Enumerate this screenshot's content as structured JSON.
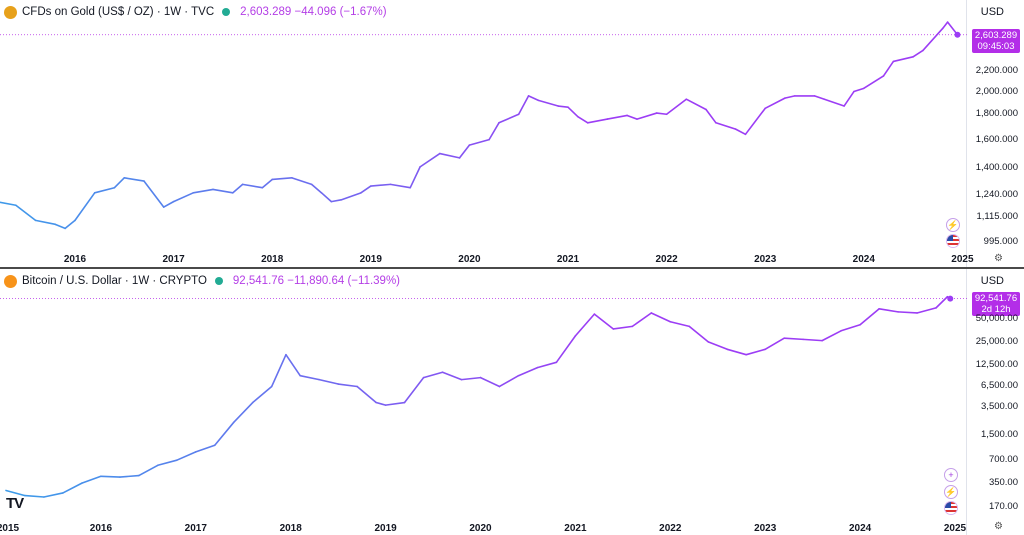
{
  "colors": {
    "line_start": "#3d9be9",
    "line_end": "#9c3df5",
    "accent": "#b32ee8",
    "status": "#22ab94",
    "legend_values": "#b43ee6"
  },
  "gold": {
    "title": "CFDs on Gold (US$ / OZ) · 1W · TVC",
    "values": "2,603.289  −44.096 (−1.67%)",
    "currency": "USD",
    "price_tag": {
      "price": "2,603.289",
      "time": "09:45:03"
    },
    "icons": [
      "gold-coin-icon",
      "lightning-icon",
      "us-flag-icon",
      "gear-icon"
    ]
  },
  "btc": {
    "title": "Bitcoin / U.S. Dollar · 1W · CRYPTO",
    "values": "92,541.76  −11,890.64 (−11.39%)",
    "currency": "USD",
    "price_tag": {
      "price": "92,541.76",
      "time": "2d 12h"
    },
    "icons": [
      "bitcoin-icon",
      "plus-icon",
      "lightning-icon",
      "us-flag-icon",
      "gear-icon",
      "tradingview-logo"
    ]
  },
  "chart_data": [
    {
      "type": "line",
      "title": "CFDs on Gold (US$ / OZ) · 1W · TVC",
      "y_scale": "log",
      "y_ticks": [
        "2,200.000",
        "2,000.000",
        "1,800.000",
        "1,600.000",
        "1,400.000",
        "1,240.000",
        "1,115.000",
        "995.000"
      ],
      "x_ticks": [
        "2016",
        "2017",
        "2018",
        "2019",
        "2020",
        "2021",
        "2022",
        "2023",
        "2024",
        "2025"
      ],
      "x": [
        2015.0,
        2015.2,
        2015.4,
        2015.6,
        2015.8,
        2015.9,
        2016.0,
        2016.2,
        2016.4,
        2016.5,
        2016.7,
        2016.9,
        2017.0,
        2017.2,
        2017.4,
        2017.6,
        2017.7,
        2017.9,
        2018.0,
        2018.2,
        2018.4,
        2018.5,
        2018.6,
        2018.7,
        2018.9,
        2019.0,
        2019.2,
        2019.4,
        2019.5,
        2019.7,
        2019.9,
        2020.0,
        2020.2,
        2020.3,
        2020.5,
        2020.6,
        2020.7,
        2020.9,
        2021.0,
        2021.1,
        2021.2,
        2021.4,
        2021.6,
        2021.7,
        2021.9,
        2022.0,
        2022.2,
        2022.4,
        2022.5,
        2022.7,
        2022.8,
        2023.0,
        2023.2,
        2023.3,
        2023.5,
        2023.6,
        2023.8,
        2023.9,
        2024.0,
        2024.2,
        2024.3,
        2024.5,
        2024.6,
        2024.8,
        2024.85,
        2024.95
      ],
      "y": [
        1240,
        1200,
        1180,
        1100,
        1080,
        1060,
        1100,
        1250,
        1280,
        1340,
        1320,
        1170,
        1200,
        1250,
        1270,
        1250,
        1300,
        1280,
        1330,
        1340,
        1300,
        1250,
        1200,
        1210,
        1250,
        1290,
        1300,
        1280,
        1410,
        1500,
        1470,
        1560,
        1600,
        1730,
        1800,
        1960,
        1920,
        1870,
        1860,
        1780,
        1730,
        1760,
        1790,
        1760,
        1810,
        1800,
        1930,
        1840,
        1730,
        1680,
        1640,
        1850,
        1940,
        1960,
        1960,
        1930,
        1870,
        2000,
        2030,
        2150,
        2300,
        2350,
        2420,
        2680,
        2760,
        2603
      ]
    },
    {
      "type": "line",
      "title": "Bitcoin / U.S. Dollar · 1W · CRYPTO",
      "y_scale": "log",
      "y_ticks": [
        "50,000.00",
        "25,000.00",
        "12,500.00",
        "6,500.00",
        "3,500.00",
        "1,500.00",
        "700.00",
        "350.00",
        "170.00"
      ],
      "x_ticks": [
        "2015",
        "2016",
        "2017",
        "2018",
        "2019",
        "2020",
        "2021",
        "2022",
        "2023",
        "2024",
        "2025"
      ],
      "x": [
        2015.0,
        2015.2,
        2015.4,
        2015.6,
        2015.8,
        2016.0,
        2016.2,
        2016.4,
        2016.6,
        2016.8,
        2017.0,
        2017.2,
        2017.4,
        2017.6,
        2017.8,
        2017.95,
        2018.1,
        2018.3,
        2018.5,
        2018.7,
        2018.9,
        2019.0,
        2019.2,
        2019.4,
        2019.6,
        2019.8,
        2020.0,
        2020.2,
        2020.4,
        2020.6,
        2020.8,
        2021.0,
        2021.2,
        2021.4,
        2021.6,
        2021.8,
        2022.0,
        2022.2,
        2022.4,
        2022.6,
        2022.8,
        2023.0,
        2023.2,
        2023.4,
        2023.6,
        2023.8,
        2024.0,
        2024.2,
        2024.4,
        2024.6,
        2024.8,
        2024.92,
        2024.95
      ],
      "y": [
        280,
        240,
        230,
        260,
        350,
        430,
        420,
        440,
        600,
        700,
        900,
        1100,
        2200,
        4000,
        6500,
        17000,
        9000,
        8000,
        7000,
        6500,
        4000,
        3700,
        4000,
        8500,
        10000,
        8000,
        8500,
        6500,
        9000,
        11500,
        13500,
        30000,
        58000,
        37000,
        40000,
        60000,
        46000,
        40000,
        25000,
        20000,
        17000,
        20000,
        28000,
        27000,
        26000,
        35000,
        42000,
        68000,
        62000,
        60000,
        70000,
        98000,
        92541
      ]
    }
  ]
}
